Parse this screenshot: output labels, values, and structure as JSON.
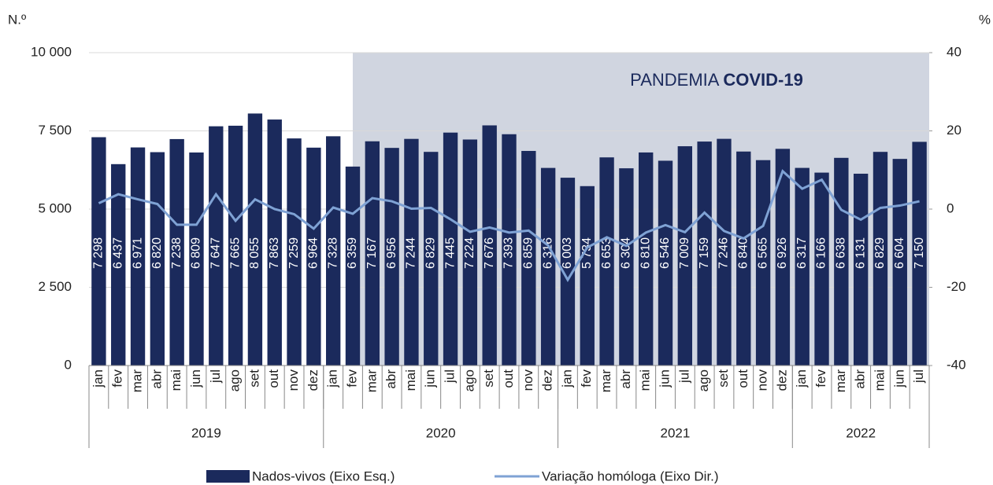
{
  "chart_data": {
    "type": "bar-line",
    "y_label": "N.º",
    "y2_label": "%",
    "annotation": {
      "text": "PANDEMIA",
      "bold_text": "COVID-19"
    },
    "groups": [
      {
        "label": "2019",
        "categories": [
          "jan",
          "fev",
          "mar",
          "abr",
          "mai",
          "jun",
          "jul",
          "ago",
          "set",
          "out",
          "nov",
          "dez"
        ]
      },
      {
        "label": "2020",
        "categories": [
          "jan",
          "fev",
          "mar",
          "abr",
          "mai",
          "jun",
          "jul",
          "ago",
          "set",
          "out",
          "nov",
          "dez"
        ]
      },
      {
        "label": "2021",
        "categories": [
          "jan",
          "fev",
          "mar",
          "abr",
          "mai",
          "jun",
          "jul",
          "ago",
          "set",
          "out",
          "nov",
          "dez"
        ]
      },
      {
        "label": "2022",
        "categories": [
          "jan",
          "fev",
          "mar",
          "abr",
          "mai",
          "jun",
          "jul"
        ]
      }
    ],
    "series": [
      {
        "name": "Nados-vivos (Eixo Esq.)",
        "type": "bar",
        "color": "#1b2a5c",
        "values": [
          7298,
          6437,
          6971,
          6820,
          7238,
          6809,
          7647,
          7665,
          8055,
          7863,
          7259,
          6964,
          7328,
          6359,
          7167,
          6956,
          7244,
          6829,
          7445,
          7224,
          7676,
          7393,
          6859,
          6316,
          6003,
          5734,
          6653,
          6304,
          6810,
          6546,
          7009,
          7159,
          7246,
          6840,
          6565,
          6926,
          6317,
          6166,
          6638,
          6131,
          6829,
          6604,
          7150
        ],
        "value_labels": [
          "7 298",
          "6 437",
          "6 971",
          "6 820",
          "7 238",
          "6 809",
          "7 647",
          "7 665",
          "8 055",
          "7 863",
          "7 259",
          "6 964",
          "7 328",
          "6 359",
          "7 167",
          "6 956",
          "7 244",
          "6 829",
          "7 445",
          "7 224",
          "7 676",
          "7 393",
          "6 859",
          "6 316",
          "6 003",
          "5 734",
          "6 653",
          "6 304",
          "6 810",
          "6 546",
          "7 009",
          "7 159",
          "7 246",
          "6 840",
          "6 565",
          "6 926",
          "6 317",
          "6 166",
          "6 638",
          "6 131",
          "6 829",
          "6 604",
          "7 150"
        ]
      },
      {
        "name": "Variação homóloga (Eixo Dir.)",
        "type": "line",
        "axis": "y2",
        "color": "#7fa2d4",
        "values": [
          1.5,
          3.8,
          2.5,
          1.3,
          -4,
          -4,
          3.8,
          -3,
          2.5,
          0,
          -1.3,
          -5,
          0.4,
          -1.2,
          2.8,
          2.0,
          0.1,
          0.3,
          -2.6,
          -5.8,
          -4.7,
          -6.0,
          -5.5,
          -9.3,
          -18.1,
          -9.8,
          -7.2,
          -9.4,
          -6.0,
          -4.1,
          -5.9,
          -0.9,
          -5.6,
          -7.5,
          -4.3,
          9.7,
          5.2,
          7.5,
          -0.2,
          -2.7,
          0.3,
          0.9,
          2.0
        ]
      }
    ],
    "ylim": [
      0,
      10000
    ],
    "yticks": [
      0,
      {
        "value": 2500,
        "label": "2 500"
      },
      {
        "value": 5000,
        "label": "5 000"
      },
      {
        "value": 7500,
        "label": "7 500"
      },
      {
        "value": 10000,
        "label": "10 000"
      }
    ],
    "y2lim": [
      -40,
      40
    ],
    "y2ticks": [
      -40,
      -20,
      0,
      20,
      40
    ],
    "grid": true
  }
}
